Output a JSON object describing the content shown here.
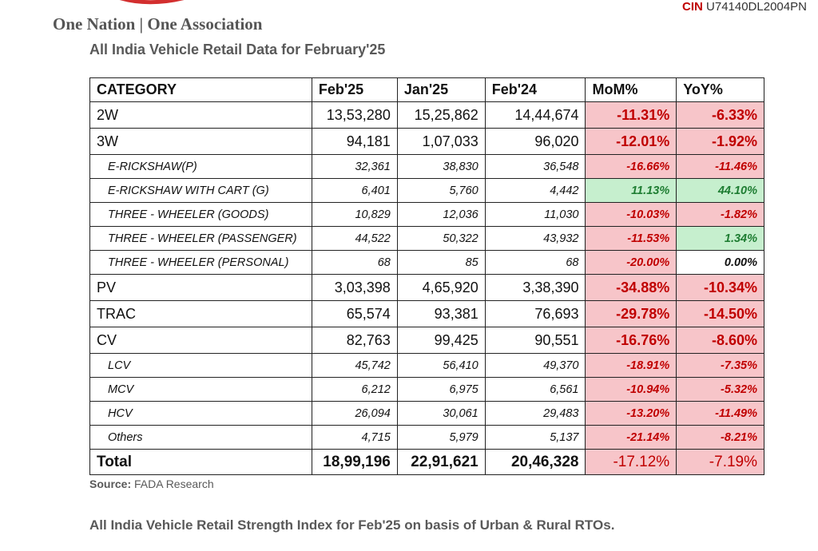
{
  "header": {
    "tagline": "One Nation | One Association",
    "cin_label": "CIN",
    "cin_value": "U74140DL2004PN"
  },
  "title": "All India Vehicle Retail Data for February'25",
  "table": {
    "columns": [
      "CATEGORY",
      "Feb'25",
      "Jan'25",
      "Feb'24",
      "MoM%",
      "YoY%"
    ],
    "rows": [
      {
        "type": "main",
        "cat": "2W",
        "feb25": "13,53,280",
        "jan25": "15,25,862",
        "feb24": "14,44,674",
        "mom": "-11.31%",
        "yoy": "-6.33%",
        "mom_s": "neg",
        "yoy_s": "neg"
      },
      {
        "type": "main",
        "cat": "3W",
        "feb25": "94,181",
        "jan25": "1,07,033",
        "feb24": "96,020",
        "mom": "-12.01%",
        "yoy": "-1.92%",
        "mom_s": "neg",
        "yoy_s": "neg"
      },
      {
        "type": "sub",
        "cat": "E-RICKSHAW(P)",
        "feb25": "32,361",
        "jan25": "38,830",
        "feb24": "36,548",
        "mom": "-16.66%",
        "yoy": "-11.46%",
        "mom_s": "neg",
        "yoy_s": "neg"
      },
      {
        "type": "sub",
        "cat": "E-RICKSHAW WITH CART (G)",
        "feb25": "6,401",
        "jan25": "5,760",
        "feb24": "4,442",
        "mom": "11.13%",
        "yoy": "44.10%",
        "mom_s": "pos",
        "yoy_s": "pos"
      },
      {
        "type": "sub",
        "cat": "THREE - WHEELER (GOODS)",
        "feb25": "10,829",
        "jan25": "12,036",
        "feb24": "11,030",
        "mom": "-10.03%",
        "yoy": "-1.82%",
        "mom_s": "neg",
        "yoy_s": "neg"
      },
      {
        "type": "sub",
        "cat": "THREE - WHEELER (PASSENGER)",
        "feb25": "44,522",
        "jan25": "50,322",
        "feb24": "43,932",
        "mom": "-11.53%",
        "yoy": "1.34%",
        "mom_s": "neg",
        "yoy_s": "pos"
      },
      {
        "type": "sub",
        "cat": "THREE - WHEELER (PERSONAL)",
        "feb25": "68",
        "jan25": "85",
        "feb24": "68",
        "mom": "-20.00%",
        "yoy": "0.00%",
        "mom_s": "neg",
        "yoy_s": "zero"
      },
      {
        "type": "main",
        "cat": "PV",
        "feb25": "3,03,398",
        "jan25": "4,65,920",
        "feb24": "3,38,390",
        "mom": "-34.88%",
        "yoy": "-10.34%",
        "mom_s": "neg",
        "yoy_s": "neg"
      },
      {
        "type": "main",
        "cat": "TRAC",
        "feb25": "65,574",
        "jan25": "93,381",
        "feb24": "76,693",
        "mom": "-29.78%",
        "yoy": "-14.50%",
        "mom_s": "neg",
        "yoy_s": "neg"
      },
      {
        "type": "main",
        "cat": "CV",
        "feb25": "82,763",
        "jan25": "99,425",
        "feb24": "90,551",
        "mom": "-16.76%",
        "yoy": "-8.60%",
        "mom_s": "neg",
        "yoy_s": "neg"
      },
      {
        "type": "sub",
        "cat": "LCV",
        "feb25": "45,742",
        "jan25": "56,410",
        "feb24": "49,370",
        "mom": "-18.91%",
        "yoy": "-7.35%",
        "mom_s": "neg",
        "yoy_s": "neg"
      },
      {
        "type": "sub",
        "cat": "MCV",
        "feb25": "6,212",
        "jan25": "6,975",
        "feb24": "6,561",
        "mom": "-10.94%",
        "yoy": "-5.32%",
        "mom_s": "neg",
        "yoy_s": "neg"
      },
      {
        "type": "sub",
        "cat": "HCV",
        "feb25": "26,094",
        "jan25": "30,061",
        "feb24": "29,483",
        "mom": "-13.20%",
        "yoy": "-11.49%",
        "mom_s": "neg",
        "yoy_s": "neg"
      },
      {
        "type": "sub",
        "cat": "Others",
        "feb25": "4,715",
        "jan25": "5,979",
        "feb24": "5,137",
        "mom": "-21.14%",
        "yoy": "-8.21%",
        "mom_s": "neg",
        "yoy_s": "neg"
      },
      {
        "type": "tot",
        "cat": "Total",
        "feb25": "18,99,196",
        "jan25": "22,91,621",
        "feb24": "20,46,328",
        "mom": "-17.12%",
        "yoy": "-7.19%",
        "mom_s": "neg",
        "yoy_s": "neg"
      }
    ]
  },
  "source": {
    "label": "Source:",
    "value": "FADA Research"
  },
  "subtitle": "All India Vehicle Retail Strength Index for Feb'25 on basis of Urban & Rural RTOs.",
  "colors": {
    "neg_bg": "#f7c5c9",
    "pos_bg": "#c6efce",
    "brand_red": "#c00000"
  }
}
